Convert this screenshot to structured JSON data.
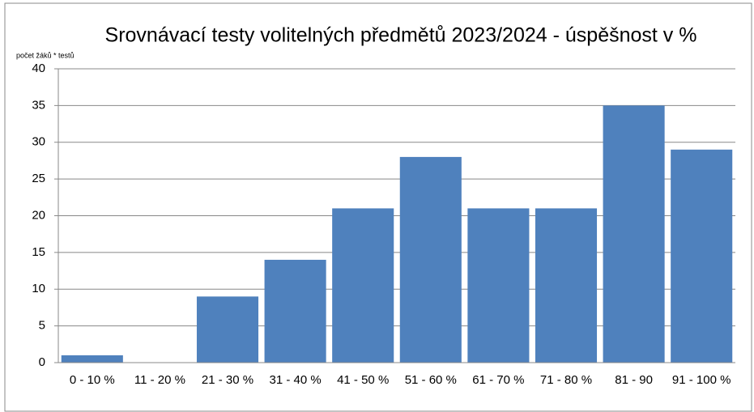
{
  "chart_data": {
    "type": "bar",
    "title": "Srovnávací testy volitelných předmětů 2023/2024 - úspěšnost v %",
    "y_label": "počet žáků * testů",
    "categories": [
      "0 - 10 %",
      "11 - 20 %",
      "21 - 30 %",
      "31 - 40 %",
      "41 - 50 %",
      "51 - 60 %",
      "61 - 70 %",
      "71 - 80 %",
      "81 - 90",
      "91 - 100 %"
    ],
    "values": [
      1,
      0,
      9,
      14,
      21,
      28,
      21,
      21,
      35,
      29
    ],
    "color": "#4f81bd",
    "ylim": [
      0,
      40
    ],
    "yticks": [
      0,
      5,
      10,
      15,
      20,
      25,
      30,
      35,
      40
    ],
    "grid": true
  }
}
